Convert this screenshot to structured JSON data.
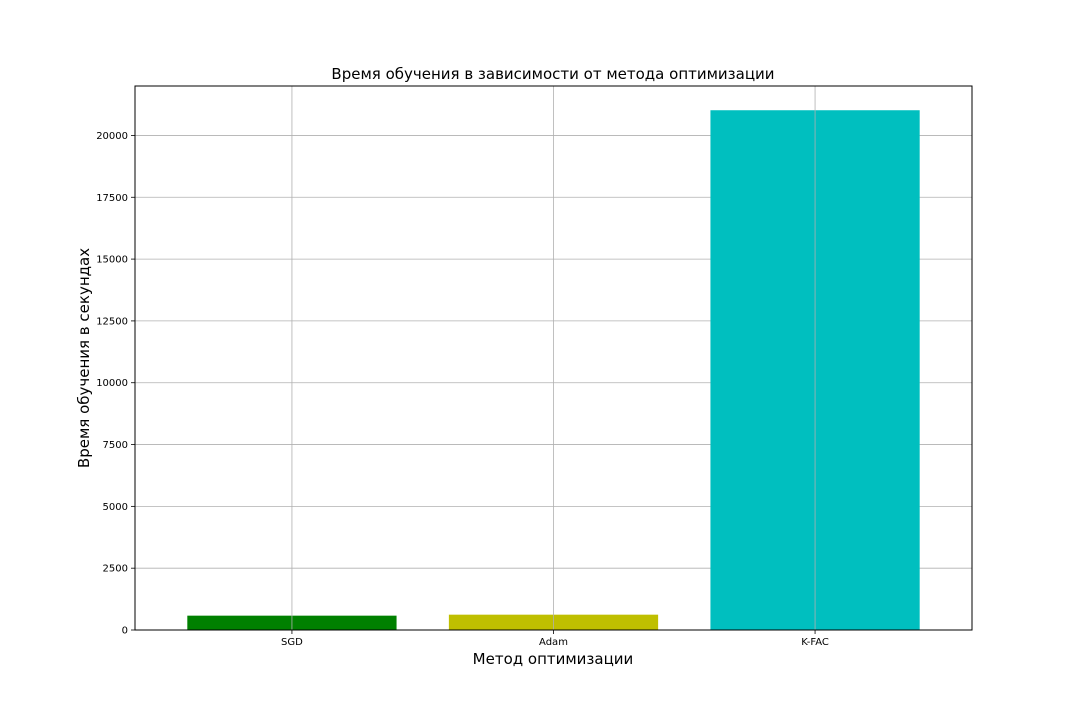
{
  "chart_data": {
    "type": "bar",
    "title": "Время обучения в зависимости от метода оптимизации",
    "xlabel": "Метод оптимизации",
    "ylabel": "Время обучения в секундах",
    "categories": [
      "SGD",
      "Adam",
      "K-FAC"
    ],
    "values": [
      580,
      620,
      21020
    ],
    "bar_colors": [
      "#008000",
      "#bfbf00",
      "#00bfbf"
    ],
    "ylim": [
      0,
      22000
    ],
    "yticks": [
      0,
      2500,
      5000,
      7500,
      10000,
      12500,
      15000,
      17500,
      20000
    ],
    "grid": true,
    "legend": null
  }
}
